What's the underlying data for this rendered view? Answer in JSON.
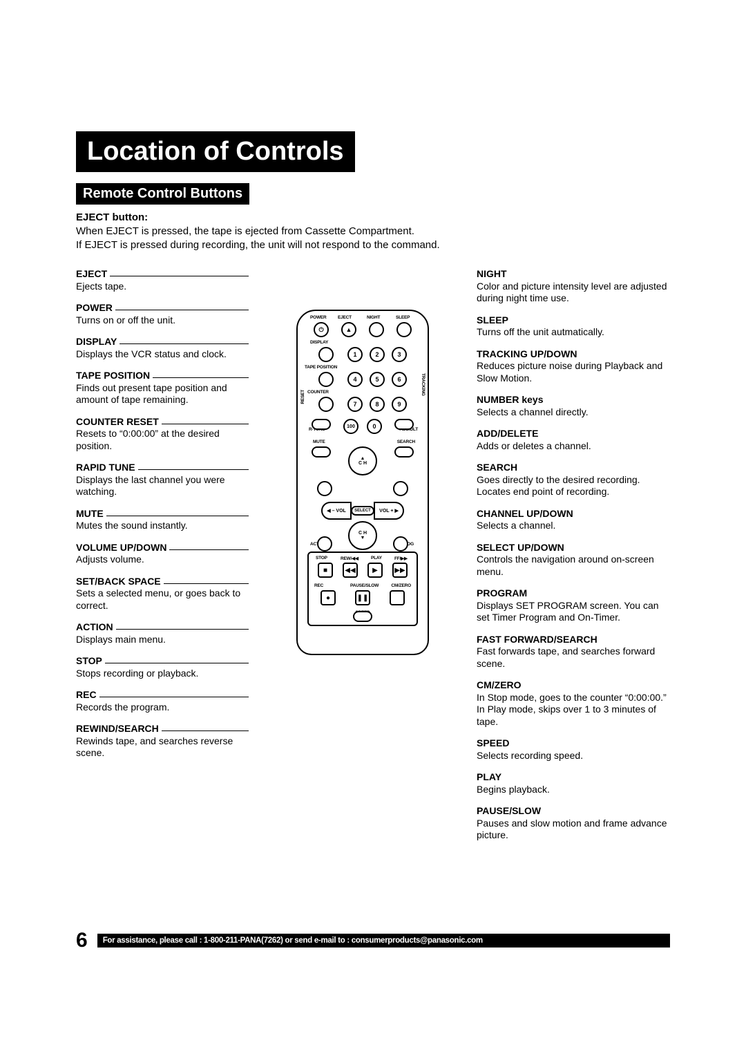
{
  "title": "Location of Controls",
  "section": "Remote Control Buttons",
  "intro": {
    "heading": "EJECT button:",
    "body": "When EJECT is pressed, the tape is ejected from Cassette Compartment.\nIf EJECT is pressed during recording, the unit will not respond to the command."
  },
  "left": [
    {
      "t": "EJECT",
      "d": "Ejects tape."
    },
    {
      "t": "POWER",
      "d": "Turns on or off the unit."
    },
    {
      "t": "DISPLAY",
      "d": "Displays the VCR status and clock."
    },
    {
      "t": "TAPE POSITION",
      "d": "Finds out present tape position and amount of tape remaining."
    },
    {
      "t": "COUNTER RESET",
      "d": "Resets to “0:00:00” at the desired position."
    },
    {
      "t": "RAPID TUNE",
      "d": "Displays the last channel you were watching."
    },
    {
      "t": "MUTE",
      "d": "Mutes the sound instantly."
    },
    {
      "t": "VOLUME UP/DOWN",
      "d": "Adjusts volume."
    },
    {
      "t": "SET/BACK SPACE",
      "d": "Sets a selected menu, or goes back to correct."
    },
    {
      "t": "ACTION",
      "d": "Displays main menu."
    },
    {
      "t": "STOP",
      "d": "Stops recording or playback."
    },
    {
      "t": "REC",
      "d": "Records the program."
    },
    {
      "t": "REWIND/SEARCH",
      "d": "Rewinds tape, and searches reverse scene."
    }
  ],
  "right": [
    {
      "t": "NIGHT",
      "d": "Color and picture intensity level are adjusted during night time use."
    },
    {
      "t": "SLEEP",
      "d": "Turns off the unit autmatically."
    },
    {
      "t": "TRACKING UP/DOWN",
      "d": "Reduces picture noise during Playback and Slow Motion."
    },
    {
      "t": "NUMBER keys",
      "d": "Selects a channel directly."
    },
    {
      "t": "ADD/DELETE",
      "d": "Adds or deletes a channel."
    },
    {
      "t": "SEARCH",
      "d": "Goes directly to the desired recording. Locates end point of recording."
    },
    {
      "t": "CHANNEL UP/DOWN",
      "d": "Selects a channel."
    },
    {
      "t": "SELECT UP/DOWN",
      "d": "Controls the navigation around on-screen menu."
    },
    {
      "t": "PROGRAM",
      "d": "Displays SET PROGRAM screen. You can set Timer Program and On-Timer."
    },
    {
      "t": "FAST FORWARD/SEARCH",
      "d": "Fast forwards tape, and searches forward scene."
    },
    {
      "t": "CM/ZERO",
      "d": "In Stop mode, goes to the counter “0:00:00.” In Play mode, skips over 1 to 3 minutes of tape."
    },
    {
      "t": "SPEED",
      "d": "Selects recording speed."
    },
    {
      "t": "PLAY",
      "d": "Begins playback."
    },
    {
      "t": "PAUSE/SLOW",
      "d": "Pauses and slow motion and frame advance picture."
    }
  ],
  "remote_labels": {
    "top": [
      "POWER",
      "EJECT",
      "NIGHT",
      "SLEEP"
    ],
    "display": "DISPLAY",
    "tape_position": "TAPE POSITION",
    "counter": "COUNTER",
    "reset": "RESET",
    "r_tune": "R-TUNE",
    "add_dlt": "ADD/DLT",
    "mute": "MUTE",
    "search": "SEARCH",
    "tracking": "TRACKING",
    "ch_up": "C H",
    "vol_minus": "– VOL",
    "vol_plus": "VOL +",
    "select": "SELECT",
    "action": "ACTION",
    "prog": "PROG",
    "transport": [
      "STOP",
      "REW/◀◀",
      "PLAY",
      "FF/▶▶"
    ],
    "rec": "REC",
    "pause_slow": "PAUSE/SLOW",
    "cm_zero": "CM/ZERO",
    "speed": "SPEED",
    "hundred": "100"
  },
  "page_number": "6",
  "footer": "For assistance, please call : 1-800-211-PANA(7262) or send e-mail to : consumerproducts@panasonic.com",
  "colors": {
    "ink": "#000000",
    "paper": "#ffffff"
  }
}
